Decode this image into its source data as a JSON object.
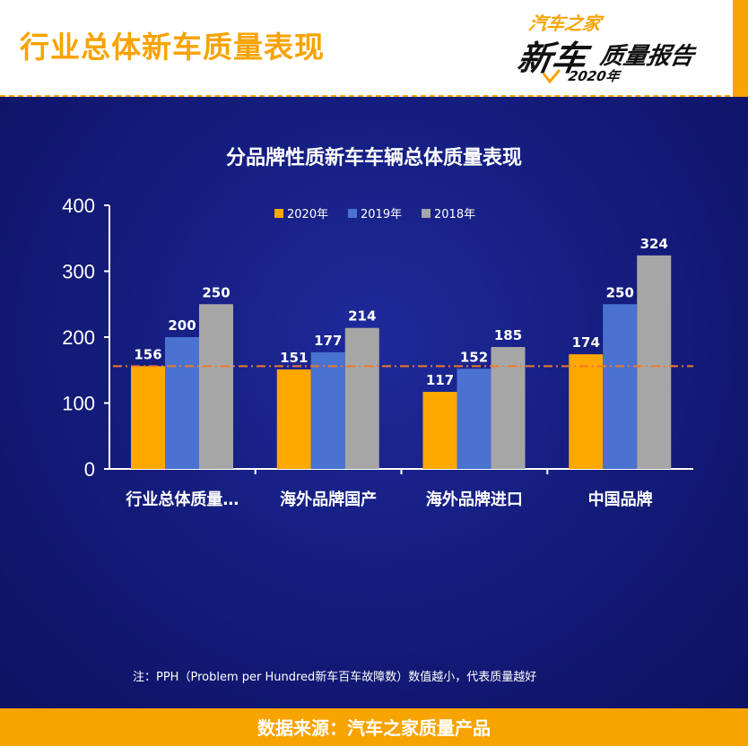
{
  "header": {
    "title": "行业总体新车质量表现",
    "logo": {
      "top": "汽车之家",
      "main": "新车",
      "sub": "质量报告",
      "year": "2020年"
    }
  },
  "colors": {
    "accent": "#f7a300",
    "s2020": "#ffa800",
    "s2019": "#4a72d0",
    "s2018": "#a6a6a6",
    "refline": "#f07a2a"
  },
  "chart_data": {
    "type": "bar",
    "title": "分品牌性质新车车辆总体质量表现",
    "categories": [
      "行业总体质量…",
      "海外品牌国产",
      "海外品牌进口",
      "中国品牌"
    ],
    "series": [
      {
        "name": "2020年",
        "values": [
          156,
          151,
          117,
          174
        ]
      },
      {
        "name": "2019年",
        "values": [
          200,
          177,
          152,
          250
        ]
      },
      {
        "name": "2018年",
        "values": [
          250,
          214,
          185,
          324
        ]
      }
    ],
    "y_ticks": [
      0,
      100,
      200,
      300,
      400
    ],
    "ylim": [
      0,
      400
    ],
    "reference_line": 156,
    "legend_position": "top-center",
    "grid": false
  },
  "note": "注：PPH（Problem per Hundred新车百车故障数）数值越小，代表质量越好",
  "footer": "数据来源：汽车之家质量产品"
}
